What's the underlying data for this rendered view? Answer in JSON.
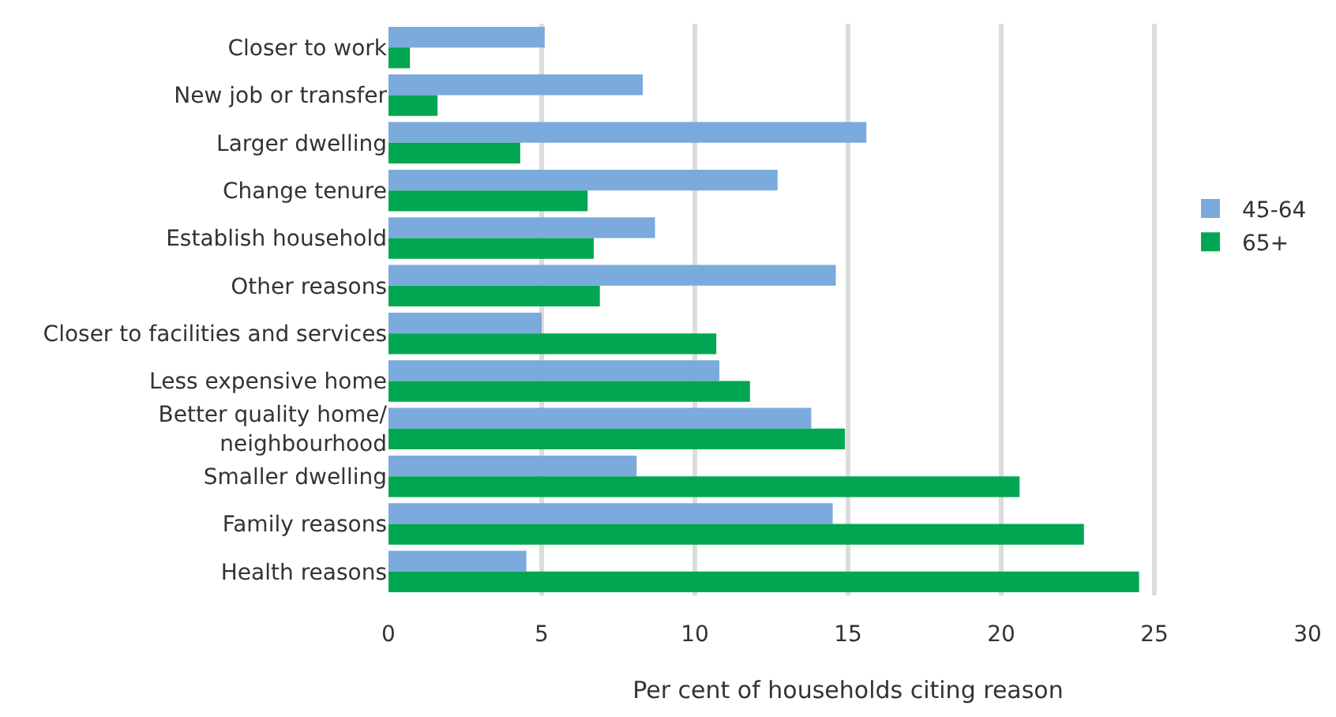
{
  "chart_data": {
    "type": "bar",
    "orientation": "horizontal",
    "xlabel": "Per cent of households citing reason",
    "categories": [
      "Closer to work",
      "New job or transfer",
      "Larger dwelling",
      "Change tenure",
      "Establish household",
      "Other reasons",
      "Closer to facilities and services",
      "Less expensive home",
      "Better quality home/\nneighbourhood",
      "Smaller dwelling",
      "Family reasons",
      "Health reasons"
    ],
    "series": [
      {
        "name": "45-64",
        "color": "#7baadc",
        "values": [
          5.1,
          8.3,
          15.6,
          12.7,
          8.7,
          14.6,
          5.0,
          10.8,
          13.8,
          8.1,
          14.5,
          4.5
        ]
      },
      {
        "name": "65+",
        "color": "#00a651",
        "values": [
          0.7,
          1.6,
          4.3,
          6.5,
          6.7,
          6.9,
          10.7,
          11.8,
          14.9,
          20.6,
          22.7,
          24.5
        ]
      }
    ],
    "xlim": [
      0,
      30
    ],
    "xticks": [
      0,
      5,
      10,
      15,
      20,
      25,
      30
    ],
    "grid": "x",
    "legend": "right"
  }
}
